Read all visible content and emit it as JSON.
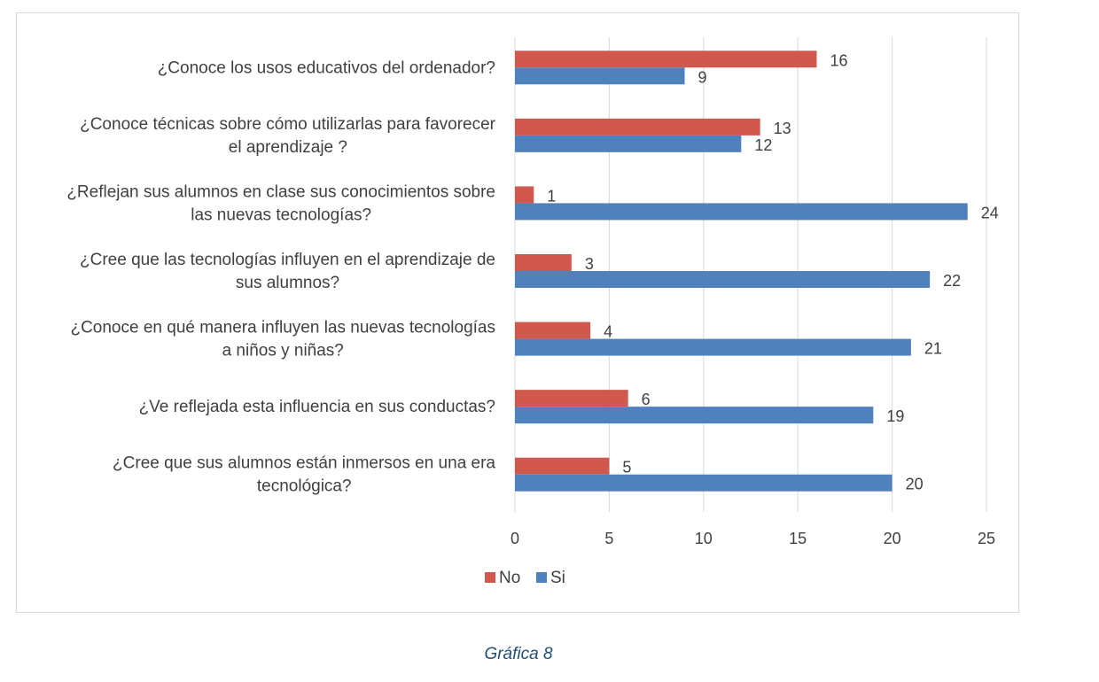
{
  "chart_data": {
    "type": "bar",
    "orientation": "horizontal",
    "categories": [
      [
        "¿Conoce los usos educativos del ordenador?"
      ],
      [
        "¿Conoce técnicas sobre cómo utilizarlas para favorecer",
        "el aprendizaje ?"
      ],
      [
        "¿Reflejan sus alumnos en clase sus conocimientos sobre",
        "las nuevas tecnologías?"
      ],
      [
        "¿Cree que las tecnologías influyen en el aprendizaje de",
        "sus alumnos?"
      ],
      [
        "¿Conoce en qué manera influyen las nuevas tecnologías",
        "a niños y niñas?"
      ],
      [
        "¿Ve reflejada esta influencia en sus conductas?"
      ],
      [
        "¿Cree que sus alumnos están inmersos en una era",
        "tecnológica?"
      ]
    ],
    "series": [
      {
        "name": "No",
        "color": "#d0584d",
        "values": [
          16,
          13,
          1,
          3,
          4,
          6,
          5
        ]
      },
      {
        "name": "Si",
        "color": "#4f81bd",
        "values": [
          9,
          12,
          24,
          22,
          21,
          19,
          20
        ]
      }
    ],
    "xlim": [
      0,
      25
    ],
    "xticks": [
      "0",
      "5",
      "10",
      "15",
      "20",
      "25"
    ],
    "grid": true,
    "legend_position": "bottom",
    "data_labels": true
  },
  "caption": "Gráfica 8"
}
